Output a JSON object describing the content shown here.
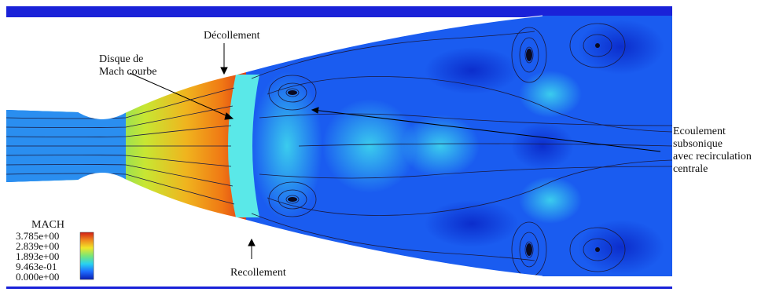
{
  "labels": {
    "decollement": "Décollement",
    "disque_line1": "Disque de",
    "disque_line2": "Mach courbe",
    "ecoulement_line1": "Ecoulement",
    "ecoulement_line2": "subsonique",
    "ecoulement_line3": "avec recirculation",
    "ecoulement_line4": "centrale",
    "recollement": "Recollement"
  },
  "colorbar": {
    "title": "MACH",
    "ticks": [
      "3.785e+00",
      "2.839e+00",
      "1.893e+00",
      "9.463e-01",
      "0.000e+00"
    ],
    "min": 0.0,
    "max": 3.785,
    "colors": [
      "#0a1eb4",
      "#1e6eff",
      "#28d2f0",
      "#78e678",
      "#f0e628",
      "#f08c1e",
      "#d21e14"
    ]
  },
  "colors": {
    "wall": "#1a22d8",
    "background_flow": "#1a5cf0",
    "streamline": "#1a1a40"
  }
}
